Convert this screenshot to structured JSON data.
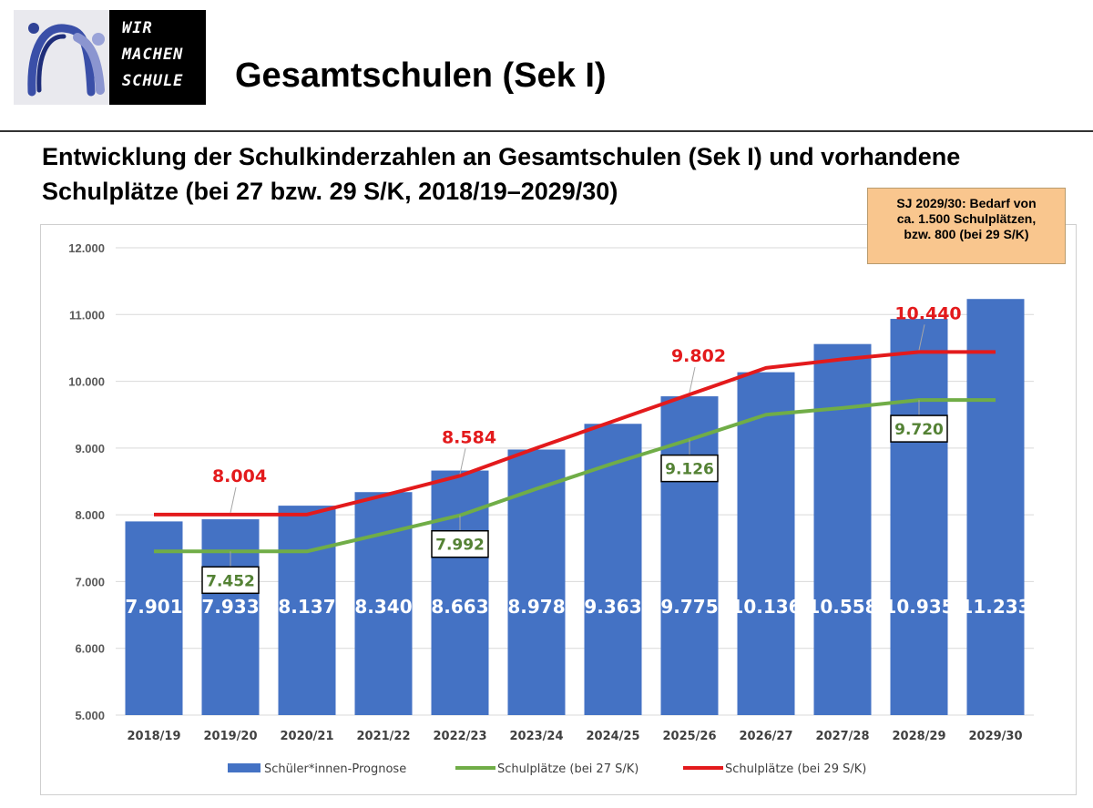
{
  "header": {
    "logo_lines": [
      "WIR",
      "MACHEN",
      "SCHULE"
    ],
    "title": "Gesamtschulen (Sek I)"
  },
  "subtitle_lines": [
    "Entwicklung der Schulkinderzahlen an Gesamtschulen (Sek I) und vorhandene",
    "Schulplätze (bei 27 bzw. 29 S/K, 2018/19–2029/30)"
  ],
  "callout_lines": [
    "SJ 2029/30: Bedarf von",
    "ca. 1.500 Schulplätzen,",
    "bzw. 800 (bei 29 S/K)"
  ],
  "colors": {
    "bar": "#4472c4",
    "line_27": "#70ad47",
    "line_29": "#e31a1c",
    "callout": "#f9c68e"
  },
  "chart_data": {
    "type": "bar",
    "categories": [
      "2018/19",
      "2019/20",
      "2020/21",
      "2021/22",
      "2022/23",
      "2023/24",
      "2024/25",
      "2025/26",
      "2026/27",
      "2027/28",
      "2028/29",
      "2029/30"
    ],
    "ylim": [
      5000,
      12000
    ],
    "yticks": [
      5000,
      6000,
      7000,
      8000,
      9000,
      10000,
      11000,
      12000
    ],
    "ytick_labels": [
      "5.000",
      "6.000",
      "7.000",
      "8.000",
      "9.000",
      "10.000",
      "11.000",
      "12.000"
    ],
    "grid": true,
    "legend_position": "bottom",
    "series": [
      {
        "name": "Schüler*innen-Prognose",
        "type": "bar",
        "values": [
          7901,
          7933,
          8137,
          8340,
          8663,
          8978,
          9363,
          9775,
          10136,
          10558,
          10935,
          11233
        ],
        "labels": [
          "7.901",
          "7.933",
          "8.137",
          "8.340",
          "8.663",
          "8.978",
          "9.363",
          "9.775",
          "10.136",
          "10.558",
          "10.935",
          "11.233"
        ]
      },
      {
        "name": "Schulplätze (bei 27 S/K)",
        "type": "line",
        "values": [
          7452,
          7452,
          7452,
          7720,
          7992,
          8390,
          8770,
          9126,
          9500,
          9600,
          9720,
          9720
        ],
        "callouts": [
          {
            "index": 1,
            "label": "7.452"
          },
          {
            "index": 4,
            "label": "7.992"
          },
          {
            "index": 7,
            "label": "9.126"
          },
          {
            "index": 10,
            "label": "9.720"
          }
        ]
      },
      {
        "name": "Schulplätze (bei 29 S/K)",
        "type": "line",
        "values": [
          8004,
          8004,
          8004,
          8290,
          8584,
          9000,
          9400,
          9802,
          10200,
          10330,
          10440,
          10440
        ],
        "callouts": [
          {
            "index": 1,
            "label": "8.004"
          },
          {
            "index": 4,
            "label": "8.584"
          },
          {
            "index": 7,
            "label": "9.802"
          },
          {
            "index": 10,
            "label": "10.440"
          }
        ]
      }
    ]
  }
}
